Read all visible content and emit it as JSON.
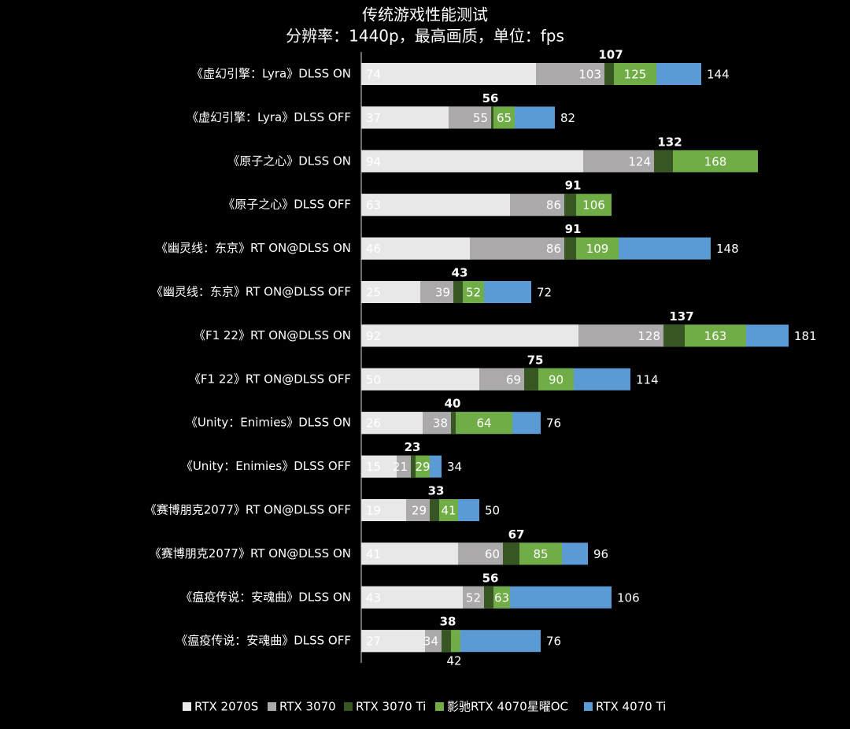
{
  "chart_data": {
    "type": "bar",
    "orientation": "horizontal",
    "overlap": true,
    "title": "传统游戏性能测试",
    "subtitle": "分辨率：1440p，最高画质，单位：fps",
    "categories": [
      "《虚幻引擎：Lyra》DLSS ON",
      "《虚幻引擎：Lyra》DLSS OFF",
      "《原子之心》DLSS ON",
      "《原子之心》DLSS OFF",
      "《幽灵线：东京》RT ON@DLSS ON",
      "《幽灵线：东京》RT ON@DLSS OFF",
      "《F1 22》RT ON@DLSS ON",
      "《F1 22》RT ON@DLSS OFF",
      "《Unity：Enimies》DLSS ON",
      "《Unity：Enimies》DLSS OFF",
      "《赛博朋克2077》RT ON@DLSS OFF",
      "《赛博朋克2077》RT ON@DLSS ON",
      "《瘟疫传说：安魂曲》DLSS ON",
      "《瘟疫传说：安魂曲》DLSS OFF"
    ],
    "series": [
      {
        "name": "RTX 2070S",
        "color": "#e8e8e8",
        "values": [
          74,
          37,
          94,
          63,
          46,
          25,
          92,
          50,
          26,
          15,
          19,
          41,
          43,
          27
        ]
      },
      {
        "name": "RTX 3070",
        "color": "#aba9a9",
        "values": [
          103,
          55,
          124,
          86,
          86,
          39,
          128,
          69,
          38,
          21,
          29,
          60,
          52,
          34
        ]
      },
      {
        "name": "RTX 3070 Ti",
        "color": "#375623",
        "values": [
          107,
          56,
          132,
          91,
          91,
          43,
          137,
          75,
          40,
          23,
          33,
          67,
          56,
          38
        ]
      },
      {
        "name": "影驰RTX 4070星曜OC",
        "color": "#70ad47",
        "values": [
          125,
          65,
          168,
          106,
          109,
          52,
          163,
          90,
          64,
          29,
          41,
          85,
          63,
          42
        ]
      },
      {
        "name": "RTX 4070 Ti",
        "color": "#5b9bd5",
        "values": [
          144,
          82,
          null,
          null,
          148,
          72,
          181,
          114,
          76,
          34,
          50,
          96,
          106,
          76
        ]
      }
    ],
    "xlim": [
      0,
      200
    ],
    "legend": "bottom"
  }
}
